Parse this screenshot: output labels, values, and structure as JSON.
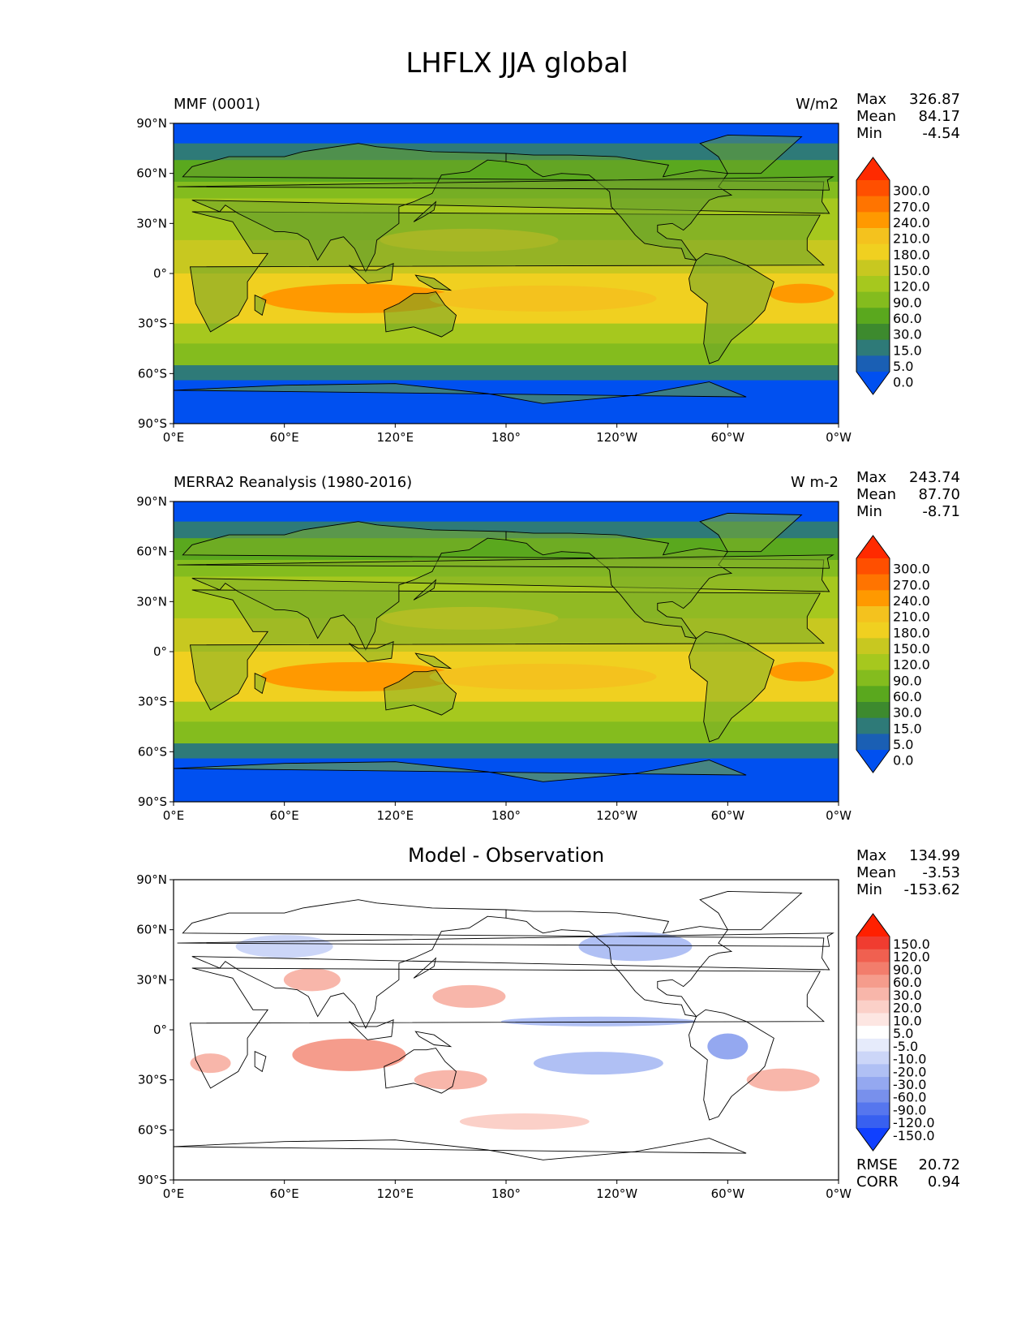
{
  "figure": {
    "title": "LHFLX JJA global"
  },
  "panels": [
    {
      "title_left": "MMF (0001)",
      "title_right": "W/m2",
      "title_center": "",
      "stats": [
        {
          "label": "Max",
          "value": "326.87"
        },
        {
          "label": "Mean",
          "value": "84.17"
        },
        {
          "label": "Min",
          "value": "-4.54"
        }
      ],
      "colorbar": {
        "labels": [
          "300.0",
          "270.0",
          "240.0",
          "210.0",
          "180.0",
          "150.0",
          "120.0",
          "90.0",
          "60.0",
          "30.0",
          "15.0",
          "5.0",
          "0.0"
        ],
        "colors": [
          "#ff2a00",
          "#ff4f00",
          "#ff7400",
          "#ff9900",
          "#f4c21e",
          "#f0d020",
          "#c8c820",
          "#a6c81e",
          "#84bc1e",
          "#5aa81e",
          "#3d8a2e",
          "#2e7a78",
          "#1a5fb4",
          "#0050f0"
        ]
      }
    },
    {
      "title_left": "MERRA2 Reanalysis (1980-2016)",
      "title_right": "W m-2",
      "title_center": "",
      "stats": [
        {
          "label": "Max",
          "value": "243.74"
        },
        {
          "label": "Mean",
          "value": "87.70"
        },
        {
          "label": "Min",
          "value": "-8.71"
        }
      ],
      "colorbar": {
        "labels": [
          "300.0",
          "270.0",
          "240.0",
          "210.0",
          "180.0",
          "150.0",
          "120.0",
          "90.0",
          "60.0",
          "30.0",
          "15.0",
          "5.0",
          "0.0"
        ],
        "colors": [
          "#ff2a00",
          "#ff4f00",
          "#ff7400",
          "#ff9900",
          "#f4c21e",
          "#f0d020",
          "#c8c820",
          "#a6c81e",
          "#84bc1e",
          "#5aa81e",
          "#3d8a2e",
          "#2e7a78",
          "#1a5fb4",
          "#0050f0"
        ]
      }
    },
    {
      "title_left": "",
      "title_right": "",
      "title_center": "Model - Observation",
      "stats": [
        {
          "label": "Max",
          "value": "134.99"
        },
        {
          "label": "Mean",
          "value": "-3.53"
        },
        {
          "label": "Min",
          "value": "-153.62"
        }
      ],
      "bottom_stats": [
        {
          "label": "RMSE",
          "value": "20.72"
        },
        {
          "label": "CORR",
          "value": "0.94"
        }
      ],
      "colorbar": {
        "labels": [
          "150.0",
          "120.0",
          "90.0",
          "60.0",
          "30.0",
          "20.0",
          "10.0",
          "5.0",
          "-5.0",
          "-10.0",
          "-20.0",
          "-30.0",
          "-60.0",
          "-90.0",
          "-120.0",
          "-150.0"
        ],
        "colors": [
          "#ff2000",
          "#f03c30",
          "#f06050",
          "#f27d6c",
          "#f59c8c",
          "#f8b6aa",
          "#fbd0c8",
          "#fde6e2",
          "#ffffff",
          "#e6ebfb",
          "#ccd6f8",
          "#b0c0f4",
          "#94a8f0",
          "#7890ec",
          "#5676ee",
          "#3860f0",
          "#1040ff"
        ]
      }
    }
  ],
  "axes": {
    "x_ticks": [
      "0°E",
      "60°E",
      "120°E",
      "180°",
      "120°W",
      "60°W",
      "0°W"
    ],
    "y_ticks": [
      "90°N",
      "60°N",
      "30°N",
      "0°",
      "30°S",
      "60°S",
      "90°S"
    ]
  }
}
